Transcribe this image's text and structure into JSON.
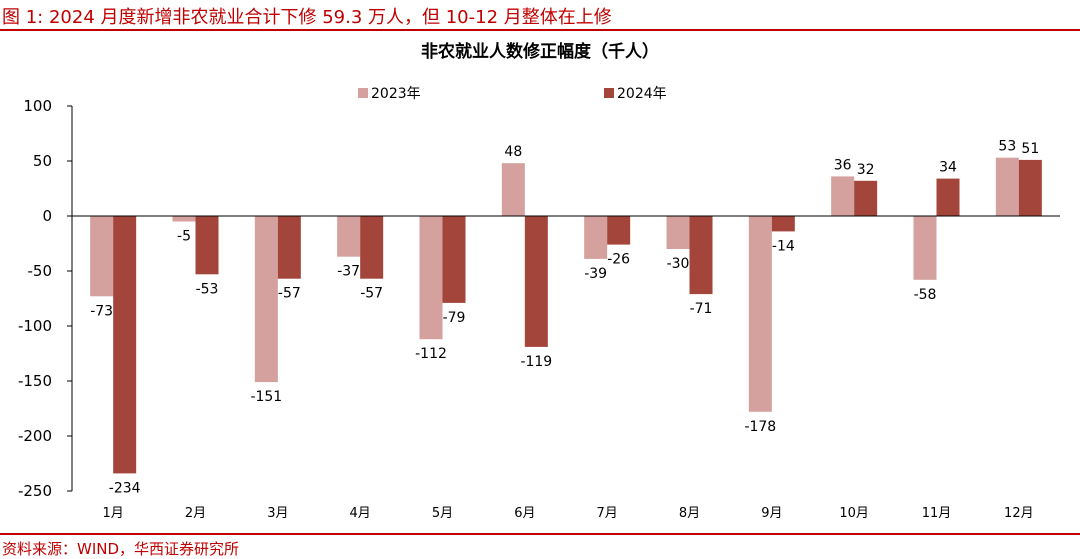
{
  "figure": {
    "title": "图 1:  2024 月度新增非农就业合计下修 59.3 万人，但 10-12 月整体在上修",
    "source": "资料来源：WIND，华西证券研究所"
  },
  "colors": {
    "accent": "#c00000",
    "series_2023": "#d4a19f",
    "series_2024": "#a3453a"
  },
  "chart_data": {
    "type": "bar",
    "title": "非农就业人数修正幅度（千人）",
    "xlabel": "",
    "ylabel": "",
    "ylim": [
      -250,
      100
    ],
    "yticks": [
      100,
      50,
      0,
      -50,
      -100,
      -150,
      -200,
      -250
    ],
    "grid": false,
    "legend_position": "top",
    "categories": [
      "1月",
      "2月",
      "3月",
      "4月",
      "5月",
      "6月",
      "7月",
      "8月",
      "9月",
      "10月",
      "11月",
      "12月"
    ],
    "series": [
      {
        "name": "2023年",
        "values": [
          -73,
          -5,
          -151,
          -37,
          -112,
          48,
          -39,
          -30,
          -178,
          36,
          -58,
          53
        ]
      },
      {
        "name": "2024年",
        "values": [
          -234,
          -53,
          -57,
          -57,
          -79,
          -119,
          -26,
          -71,
          -14,
          32,
          34,
          51
        ]
      }
    ]
  }
}
